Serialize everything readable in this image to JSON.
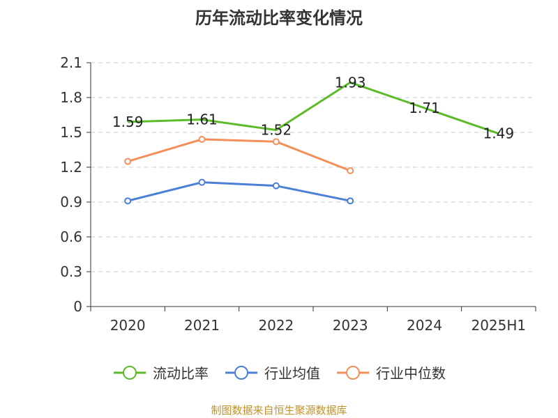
{
  "title": "历年流动比率变化情况",
  "source": "制图数据来自恒生聚源数据库",
  "colors": {
    "series_1": "#5dbb2a",
    "series_2": "#4a7fd6",
    "series_3": "#f58f5a",
    "grid": "#cccccc",
    "axis": "#333333",
    "source_text": "#c0922b"
  },
  "chart_data": {
    "type": "line",
    "title": "历年流动比率变化情况",
    "categories": [
      "2020",
      "2021",
      "2022",
      "2023",
      "2024",
      "2025H1"
    ],
    "ylim": [
      0,
      2.1
    ],
    "yticks": [
      "0",
      "0.3",
      "0.6",
      "0.9",
      "1.2",
      "1.5",
      "1.8",
      "2.1"
    ],
    "grid": true,
    "legend_position": "bottom",
    "series": [
      {
        "name": "流动比率",
        "values": [
          1.59,
          1.61,
          1.52,
          1.93,
          1.71,
          1.49
        ],
        "data_labels": [
          "1.59",
          "1.61",
          "1.52",
          "1.93",
          "1.71",
          "1.49"
        ],
        "markers": false
      },
      {
        "name": "行业均值",
        "values": [
          0.91,
          1.07,
          1.04,
          0.91,
          null,
          null
        ],
        "markers": true
      },
      {
        "name": "行业中位数",
        "values": [
          1.25,
          1.44,
          1.42,
          1.17,
          null,
          null
        ],
        "markers": true
      }
    ]
  }
}
